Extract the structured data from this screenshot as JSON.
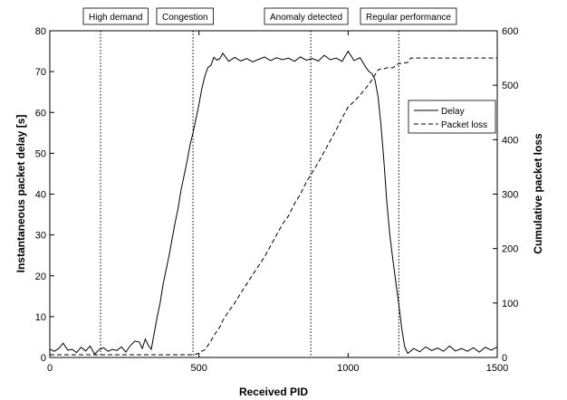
{
  "chart_data": {
    "type": "line",
    "title": "",
    "xlabel": "Received PID",
    "ylabel_left": "Instantaneous packet delay [s]",
    "ylabel_right": "Cumulative packet loss",
    "xlim": [
      0,
      1500
    ],
    "ylim_left": [
      0,
      80
    ],
    "ylim_right": [
      0,
      600
    ],
    "x_ticks": [
      0,
      500,
      1000,
      1500
    ],
    "y_ticks_left": [
      0,
      10,
      20,
      30,
      40,
      50,
      60,
      70,
      80
    ],
    "y_ticks_right": [
      0,
      100,
      200,
      300,
      400,
      500,
      600
    ],
    "grid": false,
    "legend_position": "right",
    "phases": [
      {
        "label": "High demand",
        "x": 170
      },
      {
        "label": "Congestion",
        "x": 480
      },
      {
        "label": "Anomaly detected",
        "x": 875
      },
      {
        "label": "Regular performance",
        "x": 1170
      }
    ],
    "series": [
      {
        "name": "Delay",
        "axis": "left",
        "style": "solid",
        "x": [
          0,
          15,
          30,
          45,
          60,
          75,
          90,
          105,
          120,
          135,
          150,
          165,
          180,
          195,
          210,
          225,
          240,
          255,
          270,
          285,
          300,
          310,
          320,
          330,
          340,
          350,
          360,
          370,
          380,
          390,
          400,
          410,
          420,
          430,
          440,
          450,
          460,
          470,
          480,
          490,
          500,
          510,
          520,
          530,
          540,
          550,
          560,
          570,
          580,
          600,
          620,
          640,
          660,
          680,
          700,
          720,
          740,
          760,
          780,
          800,
          820,
          840,
          860,
          880,
          900,
          920,
          940,
          960,
          980,
          1000,
          1020,
          1040,
          1060,
          1070,
          1080,
          1090,
          1100,
          1110,
          1120,
          1130,
          1140,
          1150,
          1160,
          1170,
          1180,
          1190,
          1200,
          1220,
          1240,
          1260,
          1280,
          1300,
          1320,
          1340,
          1360,
          1380,
          1400,
          1420,
          1440,
          1460,
          1480,
          1500,
          1550
        ],
        "values": [
          2.0,
          1.5,
          2.2,
          3.5,
          1.8,
          2.0,
          1.2,
          2.5,
          1.6,
          2.8,
          0.8,
          1.9,
          2.4,
          1.5,
          2.0,
          1.7,
          2.6,
          1.3,
          2.9,
          4.0,
          3.8,
          2.2,
          4.5,
          3.0,
          2.0,
          6.0,
          10.0,
          13.5,
          18.0,
          21.5,
          25.0,
          29.0,
          33.0,
          36.5,
          41.0,
          44.5,
          48.0,
          52.0,
          55.0,
          58.5,
          62.0,
          66.0,
          69.0,
          71.0,
          71.5,
          73.5,
          72.8,
          73.2,
          74.5,
          72.5,
          73.5,
          72.6,
          73.2,
          72.4,
          73.0,
          73.6,
          72.7,
          73.4,
          72.9,
          73.3,
          72.5,
          73.6,
          72.8,
          73.2,
          72.6,
          74.0,
          72.9,
          73.3,
          72.5,
          75.0,
          72.7,
          73.4,
          71.0,
          70.0,
          69.5,
          68.0,
          64.0,
          57.0,
          48.0,
          38.0,
          30.0,
          24.0,
          18.5,
          13.0,
          7.0,
          2.5,
          1.0,
          2.2,
          1.4,
          2.6,
          1.7,
          2.3,
          1.5,
          2.8,
          1.6,
          2.2,
          1.5,
          2.4,
          1.3,
          2.5,
          1.8,
          2.6,
          1.5
        ]
      },
      {
        "name": "Packet loss",
        "axis": "right",
        "style": "dashed",
        "x": [
          0,
          100,
          200,
          300,
          400,
          450,
          470,
          480,
          490,
          500,
          510,
          520,
          530,
          540,
          550,
          560,
          570,
          580,
          600,
          620,
          640,
          660,
          680,
          700,
          720,
          740,
          760,
          780,
          800,
          820,
          840,
          860,
          880,
          900,
          920,
          940,
          960,
          980,
          1000,
          1020,
          1040,
          1060,
          1080,
          1100,
          1110,
          1120,
          1130,
          1150,
          1170,
          1180,
          1200,
          1210,
          1220,
          1250,
          1300,
          1400,
          1500,
          1550
        ],
        "values": [
          5,
          5,
          5,
          5,
          5,
          5,
          5,
          5,
          6,
          8,
          12,
          14,
          22,
          30,
          40,
          48,
          56,
          68,
          85,
          100,
          118,
          135,
          152,
          168,
          185,
          205,
          225,
          245,
          260,
          282,
          300,
          322,
          340,
          358,
          378,
          398,
          418,
          440,
          460,
          470,
          482,
          495,
          510,
          528,
          530,
          530,
          532,
          532,
          540,
          540,
          542,
          550,
          550,
          550,
          550,
          550,
          550,
          550
        ]
      }
    ]
  }
}
